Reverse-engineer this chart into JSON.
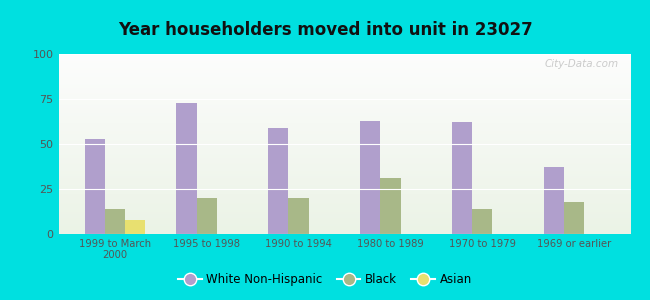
{
  "title": "Year householders moved into unit in 23027",
  "categories": [
    "1999 to March\n2000",
    "1995 to 1998",
    "1990 to 1994",
    "1980 to 1989",
    "1970 to 1979",
    "1969 or earlier"
  ],
  "white_non_hispanic": [
    53,
    73,
    59,
    63,
    62,
    37
  ],
  "black": [
    14,
    20,
    20,
    31,
    14,
    18
  ],
  "asian": [
    8,
    0,
    0,
    0,
    0,
    0
  ],
  "white_color": "#b09fcc",
  "black_color": "#a8b888",
  "asian_color": "#e8e070",
  "background_outer": "#00e0e0",
  "ylim": [
    0,
    100
  ],
  "yticks": [
    0,
    25,
    50,
    75,
    100
  ],
  "bar_width": 0.22,
  "watermark": "City-Data.com"
}
